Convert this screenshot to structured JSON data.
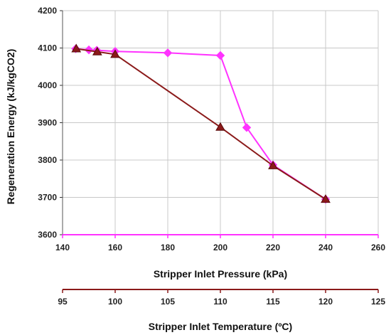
{
  "chart_data": {
    "type": "line",
    "ylabel": "Regeneration Energy (kJ/kgCO2)",
    "ylim": [
      3600,
      4200
    ],
    "yticks": [
      3600,
      3700,
      3800,
      3900,
      4000,
      4100,
      4200
    ],
    "grid": true,
    "x_axes": [
      {
        "label": "Stripper Inlet Pressure (kPa)",
        "lim": [
          140,
          260
        ],
        "ticks": [
          140,
          160,
          180,
          200,
          220,
          240,
          260
        ],
        "color": "#ff33ff"
      },
      {
        "label": "Stripper Inlet Temperature (ºC)",
        "lim": [
          95,
          125
        ],
        "ticks": [
          95,
          100,
          105,
          110,
          115,
          120,
          125
        ],
        "color": "#8b1a1a"
      }
    ],
    "series": [
      {
        "axis": 0,
        "color": "#ff33ff",
        "marker": "diamond",
        "x": [
          145,
          150,
          153,
          160,
          180,
          200,
          210,
          220,
          240
        ],
        "y": [
          4098,
          4095,
          4094,
          4091,
          4087,
          4080,
          3887,
          3787,
          3695
        ]
      },
      {
        "axis": 1,
        "color": "#8b1a1a",
        "marker": "triangle",
        "x": [
          96.3,
          98.3,
          100,
          110,
          115,
          120
        ],
        "y": [
          4098,
          4090,
          4083,
          3888,
          3785,
          3695
        ]
      }
    ]
  }
}
